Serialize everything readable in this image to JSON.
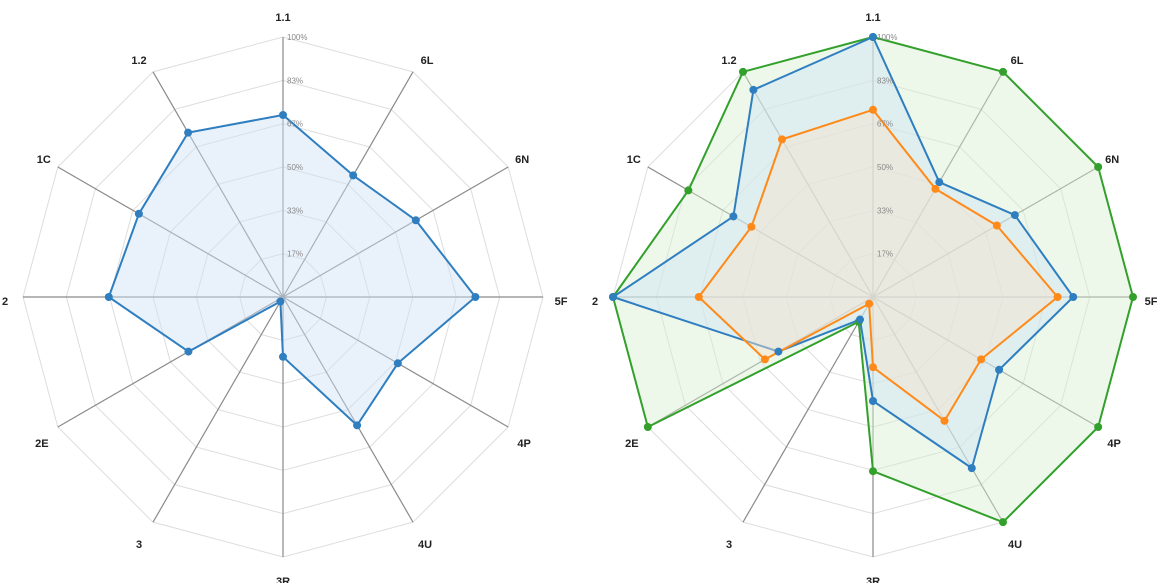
{
  "chart_data": [
    {
      "type": "radar",
      "categories": [
        "1.1",
        "6L",
        "6N",
        "5F",
        "4P",
        "4U",
        "3R",
        "3",
        "2E",
        "2",
        "1C",
        "1.2"
      ],
      "tick_labels": [
        "17%",
        "33%",
        "50%",
        "67%",
        "83%",
        "100%"
      ],
      "rlim": [
        0,
        100
      ],
      "grid": true,
      "series": [
        {
          "color": "#2f7ec0",
          "fill": "#cfe3f6",
          "values": [
            70,
            54,
            59,
            74,
            51,
            57,
            23,
            2,
            42,
            67,
            64,
            73
          ]
        }
      ]
    },
    {
      "type": "radar",
      "categories": [
        "1.1",
        "6L",
        "6N",
        "5F",
        "4P",
        "4U",
        "3R",
        "3",
        "2E",
        "2",
        "1C",
        "1.2"
      ],
      "tick_labels": [
        "17%",
        "33%",
        "50%",
        "67%",
        "83%",
        "100%"
      ],
      "rlim": [
        0,
        100
      ],
      "grid": true,
      "series": [
        {
          "color": "#33a02c",
          "fill": "#d8efd0",
          "values": [
            100,
            100,
            100,
            100,
            100,
            100,
            67,
            11,
            100,
            100,
            82,
            100
          ]
        },
        {
          "color": "#2f7ec0",
          "fill": "#cfe3f6",
          "values": [
            100,
            51,
            63,
            77,
            56,
            76,
            40,
            10,
            42,
            100,
            62,
            92
          ]
        },
        {
          "color": "#ff8a1a",
          "fill": "#f6e2cc",
          "values": [
            72,
            48,
            55,
            71,
            48,
            55,
            27,
            3,
            48,
            67,
            54,
            70
          ]
        }
      ]
    }
  ]
}
